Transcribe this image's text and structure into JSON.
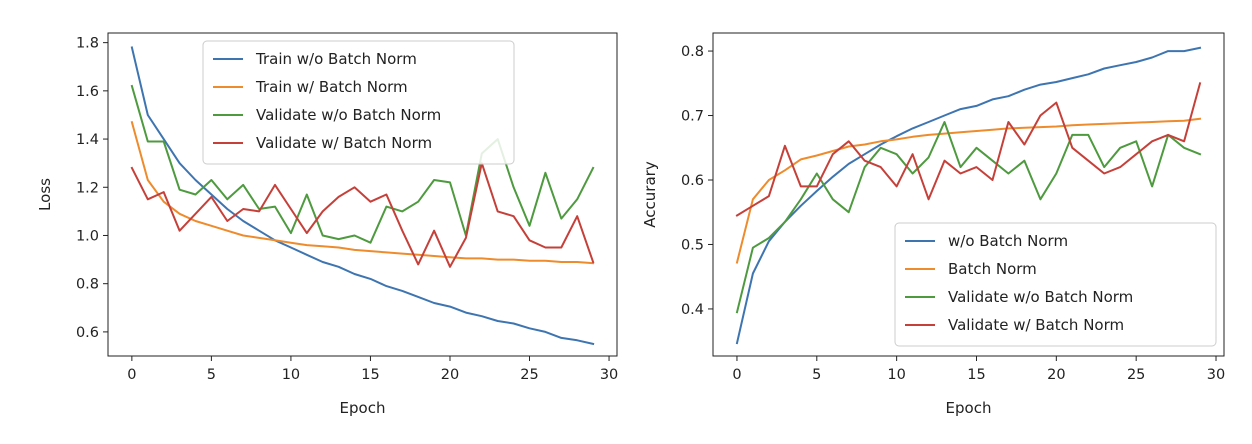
{
  "chart_data": [
    {
      "type": "line",
      "title": "",
      "xlabel": "Epoch",
      "ylabel": "Loss",
      "xlim": [
        -1.5,
        30.5
      ],
      "ylim": [
        0.5,
        1.84
      ],
      "xticks": [
        0,
        5,
        10,
        15,
        20,
        25,
        30
      ],
      "yticks": [
        0.6,
        0.8,
        1.0,
        1.2,
        1.4,
        1.6,
        1.8
      ],
      "ytick_labels": [
        "0.6",
        "0.8",
        "1.0",
        "1.2",
        "1.4",
        "1.6",
        "1.8"
      ],
      "grid": false,
      "legend_position": "top-center",
      "x": [
        0,
        1,
        2,
        3,
        4,
        5,
        6,
        7,
        8,
        9,
        10,
        11,
        12,
        13,
        14,
        15,
        16,
        17,
        18,
        19,
        20,
        21,
        22,
        23,
        24,
        25,
        26,
        27,
        28,
        29
      ],
      "series": [
        {
          "name": "Train w/o Batch Norm",
          "color": "#3e75b1",
          "values": [
            1.78,
            1.5,
            1.4,
            1.3,
            1.23,
            1.17,
            1.11,
            1.06,
            1.02,
            0.98,
            0.95,
            0.92,
            0.89,
            0.87,
            0.84,
            0.82,
            0.79,
            0.77,
            0.745,
            0.72,
            0.705,
            0.68,
            0.665,
            0.645,
            0.635,
            0.615,
            0.6,
            0.575,
            0.565,
            0.55
          ]
        },
        {
          "name": "Train w/ Batch Norm",
          "color": "#ee8b2c",
          "values": [
            1.47,
            1.23,
            1.14,
            1.09,
            1.06,
            1.04,
            1.02,
            1.0,
            0.99,
            0.98,
            0.97,
            0.96,
            0.955,
            0.95,
            0.94,
            0.935,
            0.93,
            0.925,
            0.92,
            0.915,
            0.91,
            0.905,
            0.905,
            0.9,
            0.9,
            0.895,
            0.895,
            0.89,
            0.89,
            0.885
          ]
        },
        {
          "name": "Validate w/o Batch Norm",
          "color": "#4e9a3f",
          "values": [
            1.62,
            1.39,
            1.39,
            1.19,
            1.17,
            1.23,
            1.15,
            1.21,
            1.11,
            1.12,
            1.01,
            1.17,
            1.0,
            0.985,
            1.0,
            0.97,
            1.12,
            1.1,
            1.14,
            1.23,
            1.22,
            1.0,
            1.34,
            1.4,
            1.2,
            1.04,
            1.26,
            1.07,
            1.15,
            1.28
          ]
        },
        {
          "name": "Validate w/ Batch Norm",
          "color": "#c6403a",
          "values": [
            1.28,
            1.15,
            1.18,
            1.02,
            1.09,
            1.16,
            1.06,
            1.11,
            1.1,
            1.21,
            1.11,
            1.01,
            1.1,
            1.16,
            1.2,
            1.14,
            1.17,
            1.02,
            0.88,
            1.02,
            0.87,
            0.99,
            1.3,
            1.1,
            1.08,
            0.98,
            0.95,
            0.95,
            1.08,
            0.89
          ]
        }
      ]
    },
    {
      "type": "line",
      "title": "",
      "xlabel": "Epoch",
      "ylabel": "Accurary",
      "xlim": [
        -1.5,
        30.5
      ],
      "ylim": [
        0.327,
        0.828
      ],
      "xticks": [
        0,
        5,
        10,
        15,
        20,
        25,
        30
      ],
      "yticks": [
        0.4,
        0.5,
        0.6,
        0.7,
        0.8
      ],
      "ytick_labels": [
        "0.4",
        "0.5",
        "0.6",
        "0.7",
        "0.8"
      ],
      "grid": false,
      "legend_position": "bottom-right",
      "x": [
        0,
        1,
        2,
        3,
        4,
        5,
        6,
        7,
        8,
        9,
        10,
        11,
        12,
        13,
        14,
        15,
        16,
        17,
        18,
        19,
        20,
        21,
        22,
        23,
        24,
        25,
        26,
        27,
        28,
        29
      ],
      "series": [
        {
          "name": "w/o Batch Norm",
          "color": "#3e75b1",
          "values": [
            0.347,
            0.455,
            0.505,
            0.535,
            0.56,
            0.583,
            0.605,
            0.625,
            0.64,
            0.655,
            0.668,
            0.68,
            0.69,
            0.7,
            0.71,
            0.715,
            0.725,
            0.73,
            0.74,
            0.748,
            0.752,
            0.758,
            0.764,
            0.773,
            0.778,
            0.783,
            0.79,
            0.8,
            0.8,
            0.805
          ]
        },
        {
          "name": "Batch Norm",
          "color": "#ee8b2c",
          "values": [
            0.472,
            0.57,
            0.6,
            0.615,
            0.632,
            0.638,
            0.645,
            0.652,
            0.655,
            0.66,
            0.663,
            0.667,
            0.67,
            0.672,
            0.674,
            0.676,
            0.678,
            0.68,
            0.681,
            0.682,
            0.683,
            0.685,
            0.686,
            0.687,
            0.688,
            0.689,
            0.69,
            0.691,
            0.692,
            0.695
          ]
        },
        {
          "name": "Validate w/o Batch Norm",
          "color": "#4e9a3f",
          "values": [
            0.395,
            0.495,
            0.51,
            0.535,
            0.57,
            0.61,
            0.57,
            0.55,
            0.62,
            0.65,
            0.64,
            0.61,
            0.635,
            0.69,
            0.62,
            0.65,
            0.63,
            0.61,
            0.63,
            0.57,
            0.61,
            0.67,
            0.67,
            0.62,
            0.65,
            0.66,
            0.59,
            0.67,
            0.65,
            0.64
          ]
        },
        {
          "name": "Validate w/ Batch Norm",
          "color": "#c6403a",
          "values": [
            0.545,
            0.56,
            0.575,
            0.653,
            0.59,
            0.59,
            0.64,
            0.66,
            0.63,
            0.62,
            0.59,
            0.64,
            0.57,
            0.63,
            0.61,
            0.62,
            0.6,
            0.69,
            0.655,
            0.7,
            0.72,
            0.65,
            0.63,
            0.61,
            0.62,
            0.64,
            0.66,
            0.67,
            0.66,
            0.75
          ]
        }
      ]
    }
  ]
}
